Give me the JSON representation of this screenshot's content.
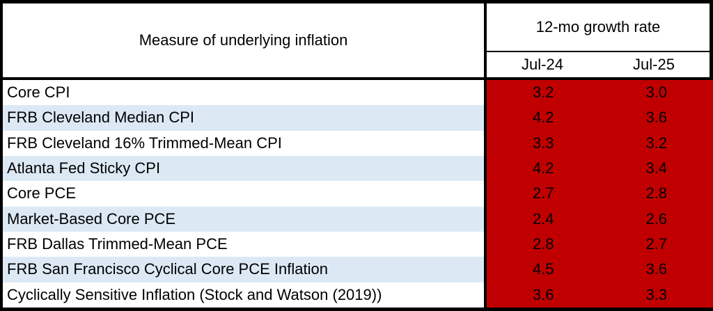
{
  "chart_data": {
    "type": "table",
    "measure_column_header": "Measure of underlying inflation",
    "group_header": "12-mo growth rate",
    "period_headers": [
      "Jul-24",
      "Jul-25"
    ],
    "rows": [
      {
        "label": "Core CPI",
        "values": [
          "3.2",
          "3.0"
        ]
      },
      {
        "label": "FRB Cleveland Median CPI",
        "values": [
          "4.2",
          "3.6"
        ]
      },
      {
        "label": "FRB Cleveland 16% Trimmed-Mean CPI",
        "values": [
          "3.3",
          "3.2"
        ]
      },
      {
        "label": "Atlanta Fed Sticky CPI",
        "values": [
          "4.2",
          "3.4"
        ]
      },
      {
        "label": "Core PCE",
        "values": [
          "2.7",
          "2.8"
        ]
      },
      {
        "label": "Market-Based Core PCE",
        "values": [
          "2.4",
          "2.6"
        ]
      },
      {
        "label": "FRB Dallas Trimmed-Mean PCE",
        "values": [
          "2.8",
          "2.7"
        ]
      },
      {
        "label": "FRB San Francisco Cyclical Core PCE Inflation",
        "values": [
          "4.5",
          "3.6"
        ]
      },
      {
        "label": "Cyclically Sensitive Inflation (Stock and Watson (2019))",
        "values": [
          "3.6",
          "3.3"
        ]
      }
    ]
  },
  "colors": {
    "data_cell_fill": "#C00000",
    "banded_row_fill": "#DCE9F5",
    "plain_row_fill": "#FFFFFF",
    "border": "#000000",
    "text": "#000000"
  }
}
